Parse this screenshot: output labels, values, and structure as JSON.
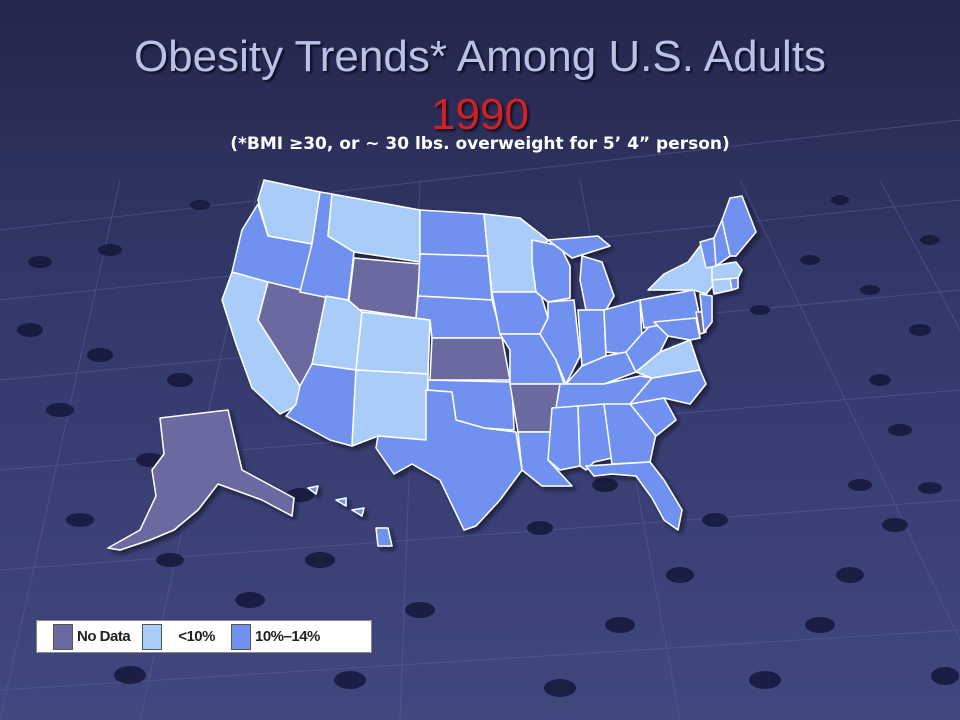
{
  "title": "Obesity Trends* Among U.S. Adults",
  "year": "1990",
  "subtitle": "(*BMI ≥30, or ~ 30 lbs. overweight for 5’ 4” person)",
  "colors": {
    "no_data": "#6a6aa0",
    "under10": "#a9cdf8",
    "10to14": "#6f91ef"
  },
  "legend": [
    {
      "label": "No Data",
      "color": "#6a6aa0"
    },
    {
      "label": "<10%",
      "color": "#a9cdf8"
    },
    {
      "label": "10%–14%",
      "color": "#6f91ef"
    }
  ],
  "states": {
    "no_data": [
      "Alaska",
      "Nevada",
      "Wyoming",
      "Kansas",
      "Arkansas",
      "Delaware"
    ],
    "under10": [
      "Washington",
      "Montana",
      "Minnesota",
      "California",
      "Utah",
      "Colorado",
      "New Mexico",
      "New York",
      "Virginia",
      "Connecticut",
      "Massachusetts"
    ],
    "10to14": [
      "Oregon",
      "Idaho",
      "North Dakota",
      "South Dakota",
      "Nebraska",
      "Iowa",
      "Wisconsin",
      "Michigan",
      "Illinois",
      "Indiana",
      "Ohio",
      "Pennsylvania",
      "Arizona",
      "Oklahoma",
      "Texas",
      "Missouri",
      "Kentucky",
      "Tennessee",
      "Louisiana",
      "Mississippi",
      "Alabama",
      "Georgia",
      "Florida",
      "South Carolina",
      "North Carolina",
      "West Virginia",
      "Maryland",
      "New Jersey",
      "Maine",
      "Vermont",
      "New Hampshire",
      "Rhode Island",
      "Hawaii"
    ]
  }
}
